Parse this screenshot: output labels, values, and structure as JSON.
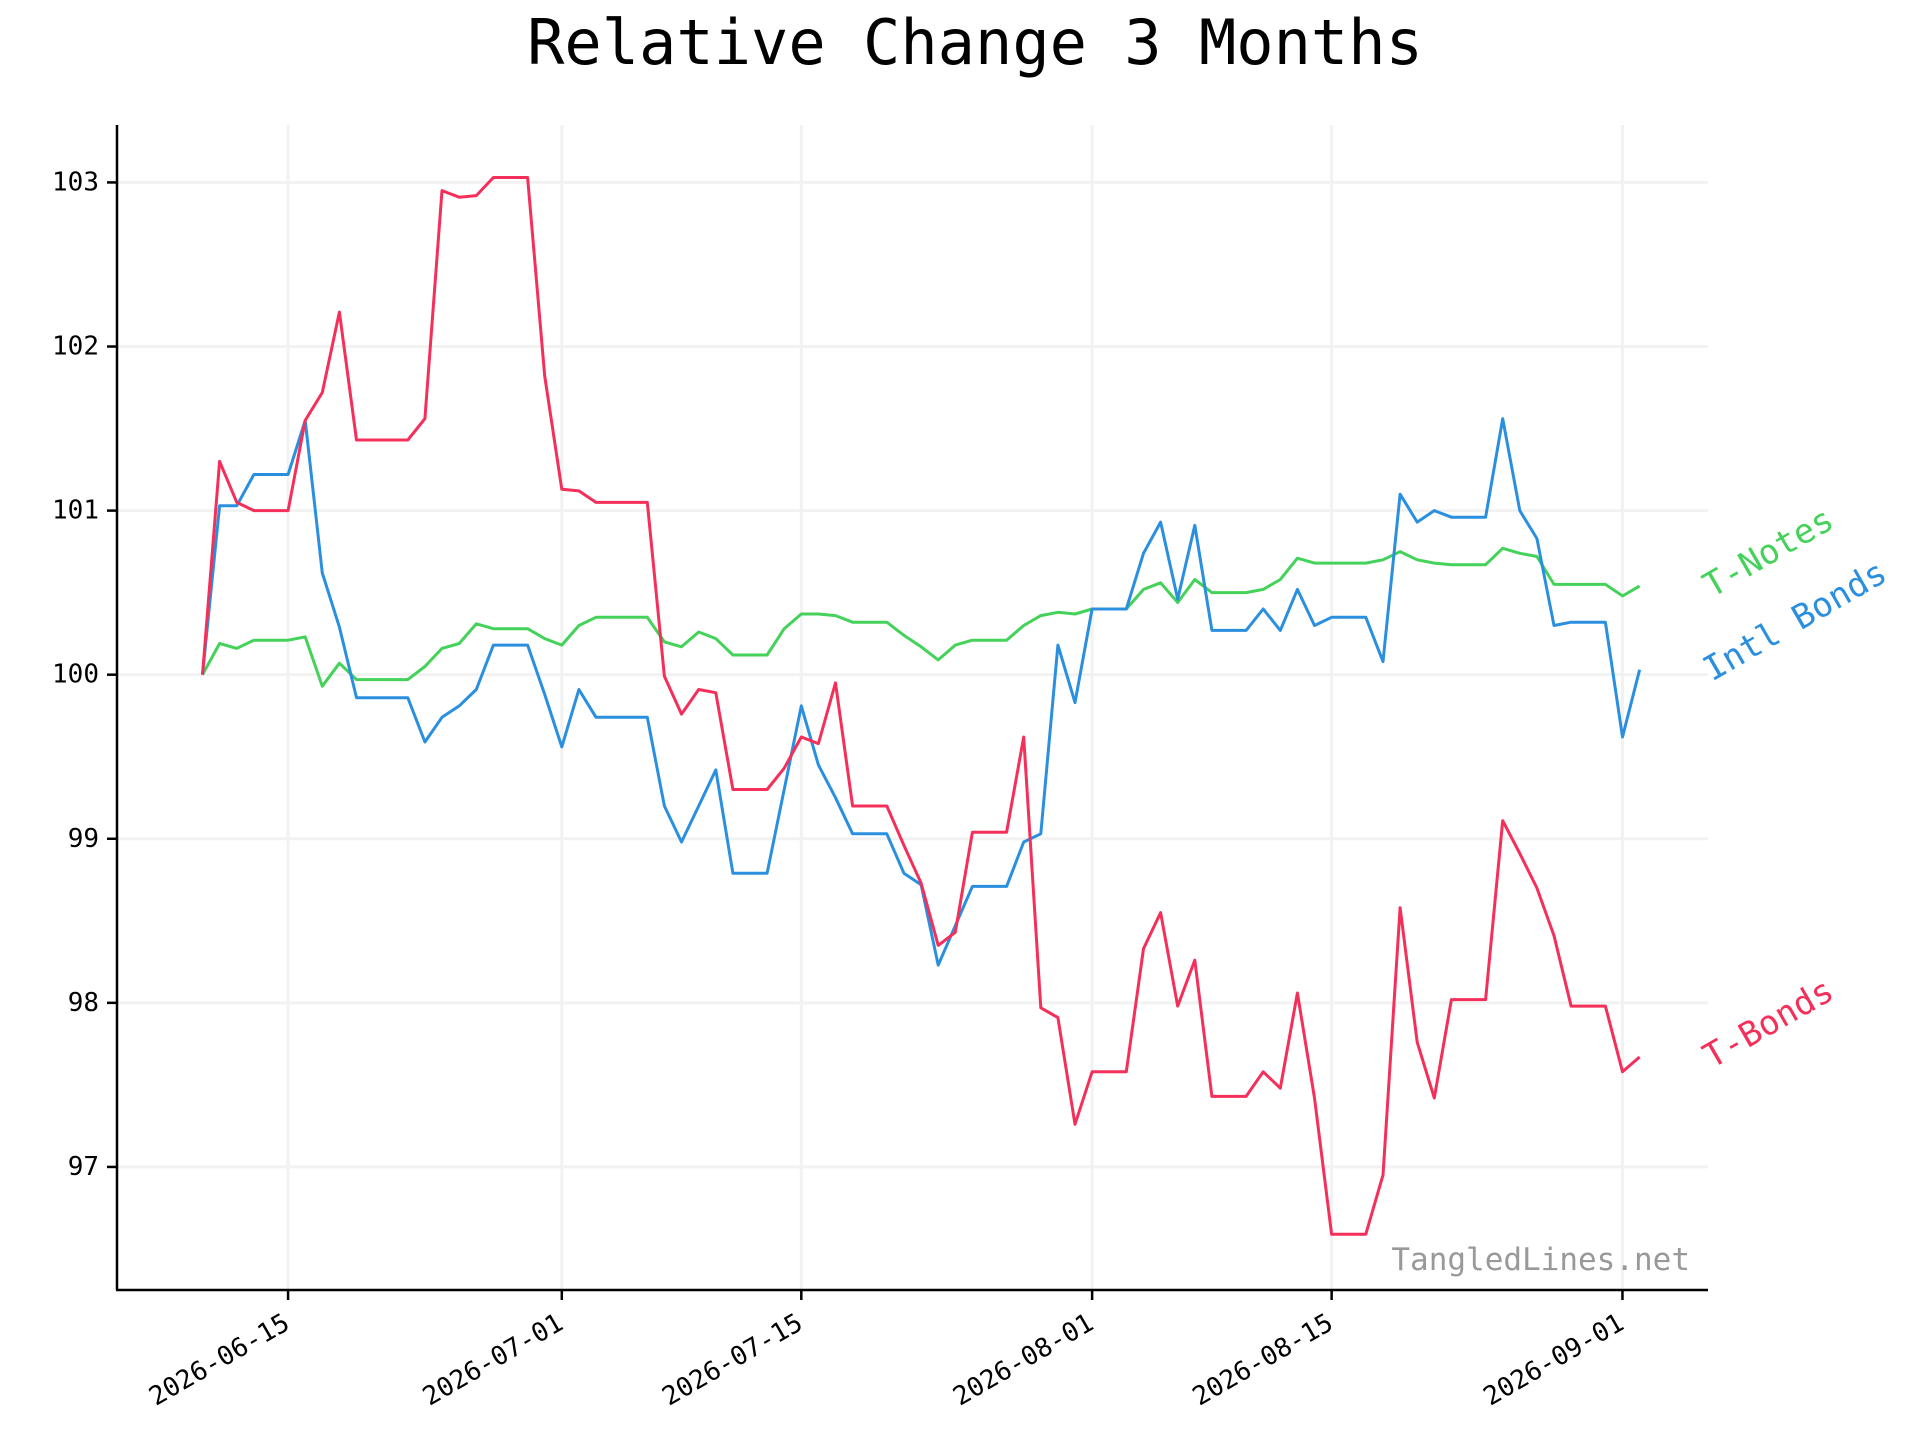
{
  "chart_data": {
    "type": "line",
    "title": "Relative Change 3 Months",
    "xlabel": "",
    "ylabel": "",
    "x_ticks": [
      "2026-06-15",
      "2026-07-01",
      "2026-07-15",
      "2026-08-01",
      "2026-08-15",
      "2026-09-01"
    ],
    "y_ticks": [
      "97",
      "98",
      "99",
      "100",
      "101",
      "102",
      "103"
    ],
    "x_range": [
      "2026-06-05",
      "2026-09-06"
    ],
    "ylim": [
      96.25,
      103.35
    ],
    "grid": true,
    "legend": "labels at right end of lines",
    "watermark": "TangledLines.net",
    "x": [
      "2026-06-10",
      "2026-06-11",
      "2026-06-12",
      "2026-06-13",
      "2026-06-14",
      "2026-06-15",
      "2026-06-16",
      "2026-06-17",
      "2026-06-18",
      "2026-06-19",
      "2026-06-20",
      "2026-06-21",
      "2026-06-22",
      "2026-06-23",
      "2026-06-24",
      "2026-06-25",
      "2026-06-26",
      "2026-06-27",
      "2026-06-28",
      "2026-06-29",
      "2026-06-30",
      "2026-07-01",
      "2026-07-02",
      "2026-07-03",
      "2026-07-04",
      "2026-07-05",
      "2026-07-06",
      "2026-07-07",
      "2026-07-08",
      "2026-07-09",
      "2026-07-10",
      "2026-07-11",
      "2026-07-12",
      "2026-07-13",
      "2026-07-14",
      "2026-07-15",
      "2026-07-16",
      "2026-07-17",
      "2026-07-18",
      "2026-07-19",
      "2026-07-20",
      "2026-07-21",
      "2026-07-22",
      "2026-07-23",
      "2026-07-24",
      "2026-07-25",
      "2026-07-26",
      "2026-07-27",
      "2026-07-28",
      "2026-07-29",
      "2026-07-30",
      "2026-07-31",
      "2026-08-01",
      "2026-08-02",
      "2026-08-03",
      "2026-08-04",
      "2026-08-05",
      "2026-08-06",
      "2026-08-07",
      "2026-08-08",
      "2026-08-09",
      "2026-08-10",
      "2026-08-11",
      "2026-08-12",
      "2026-08-13",
      "2026-08-14",
      "2026-08-15",
      "2026-08-16",
      "2026-08-17",
      "2026-08-18",
      "2026-08-19",
      "2026-08-20",
      "2026-08-21",
      "2026-08-22",
      "2026-08-23",
      "2026-08-24",
      "2026-08-25",
      "2026-08-26",
      "2026-08-27",
      "2026-08-28",
      "2026-08-29",
      "2026-08-30",
      "2026-08-31",
      "2026-09-01",
      "2026-09-02"
    ],
    "series": [
      {
        "name": "T-Notes",
        "color": "#44d25a",
        "values": [
          100.0,
          100.19,
          100.16,
          100.21,
          100.21,
          100.21,
          100.23,
          99.93,
          100.07,
          99.97,
          99.97,
          99.97,
          99.97,
          100.05,
          100.16,
          100.19,
          100.31,
          100.28,
          100.28,
          100.28,
          100.22,
          100.18,
          100.3,
          100.35,
          100.35,
          100.35,
          100.35,
          100.2,
          100.17,
          100.26,
          100.22,
          100.12,
          100.12,
          100.12,
          100.28,
          100.37,
          100.37,
          100.36,
          100.32,
          100.32,
          100.32,
          100.24,
          100.17,
          100.09,
          100.18,
          100.21,
          100.21,
          100.21,
          100.3,
          100.36,
          100.38,
          100.37,
          100.4,
          100.4,
          100.4,
          100.52,
          100.56,
          100.44,
          100.58,
          100.5,
          100.5,
          100.5,
          100.52,
          100.58,
          100.71,
          100.68,
          100.68,
          100.68,
          100.68,
          100.7,
          100.75,
          100.7,
          100.68,
          100.67,
          100.67,
          100.67,
          100.77,
          100.74,
          100.72,
          100.55,
          100.55,
          100.55,
          100.55,
          100.48,
          100.54
        ]
      },
      {
        "name": "Intl Bonds",
        "color": "#2b8fe0",
        "values": [
          100.0,
          101.03,
          101.03,
          101.22,
          101.22,
          101.22,
          101.55,
          100.62,
          100.29,
          99.86,
          99.86,
          99.86,
          99.86,
          99.59,
          99.74,
          99.81,
          99.91,
          100.18,
          100.18,
          100.18,
          99.88,
          99.56,
          99.91,
          99.74,
          99.74,
          99.74,
          99.74,
          99.2,
          98.98,
          99.2,
          99.42,
          98.79,
          98.79,
          98.79,
          99.3,
          99.81,
          99.45,
          99.25,
          99.03,
          99.03,
          99.03,
          98.79,
          98.72,
          98.23,
          98.47,
          98.71,
          98.71,
          98.71,
          98.98,
          99.03,
          100.18,
          99.83,
          100.4,
          100.4,
          100.4,
          100.74,
          100.93,
          100.46,
          100.91,
          100.27,
          100.27,
          100.27,
          100.4,
          100.27,
          100.52,
          100.3,
          100.35,
          100.35,
          100.35,
          100.08,
          101.1,
          100.93,
          101.0,
          100.96,
          100.96,
          100.96,
          101.56,
          101.0,
          100.83,
          100.3,
          100.32,
          100.32,
          100.32,
          99.62,
          100.03
        ]
      },
      {
        "name": "T-Bonds",
        "color": "#f4305a",
        "values": [
          100.0,
          101.3,
          101.05,
          101.0,
          101.0,
          101.0,
          101.55,
          101.72,
          102.21,
          101.43,
          101.43,
          101.43,
          101.43,
          101.56,
          102.95,
          102.91,
          102.92,
          103.03,
          103.03,
          103.03,
          101.82,
          101.13,
          101.12,
          101.05,
          101.05,
          101.05,
          101.05,
          99.99,
          99.76,
          99.91,
          99.89,
          99.3,
          99.3,
          99.3,
          99.43,
          99.62,
          99.58,
          99.95,
          99.2,
          99.2,
          99.2,
          98.96,
          98.73,
          98.35,
          98.43,
          99.04,
          99.04,
          99.04,
          99.62,
          97.97,
          97.91,
          97.26,
          97.58,
          97.58,
          97.58,
          98.33,
          98.55,
          97.98,
          98.26,
          97.43,
          97.43,
          97.43,
          97.58,
          97.48,
          98.06,
          97.42,
          96.59,
          96.59,
          96.59,
          96.95,
          98.58,
          97.76,
          97.42,
          98.02,
          98.02,
          98.02,
          99.11,
          98.91,
          98.7,
          98.41,
          97.98,
          97.98,
          97.98,
          97.58,
          97.67
        ]
      }
    ]
  }
}
